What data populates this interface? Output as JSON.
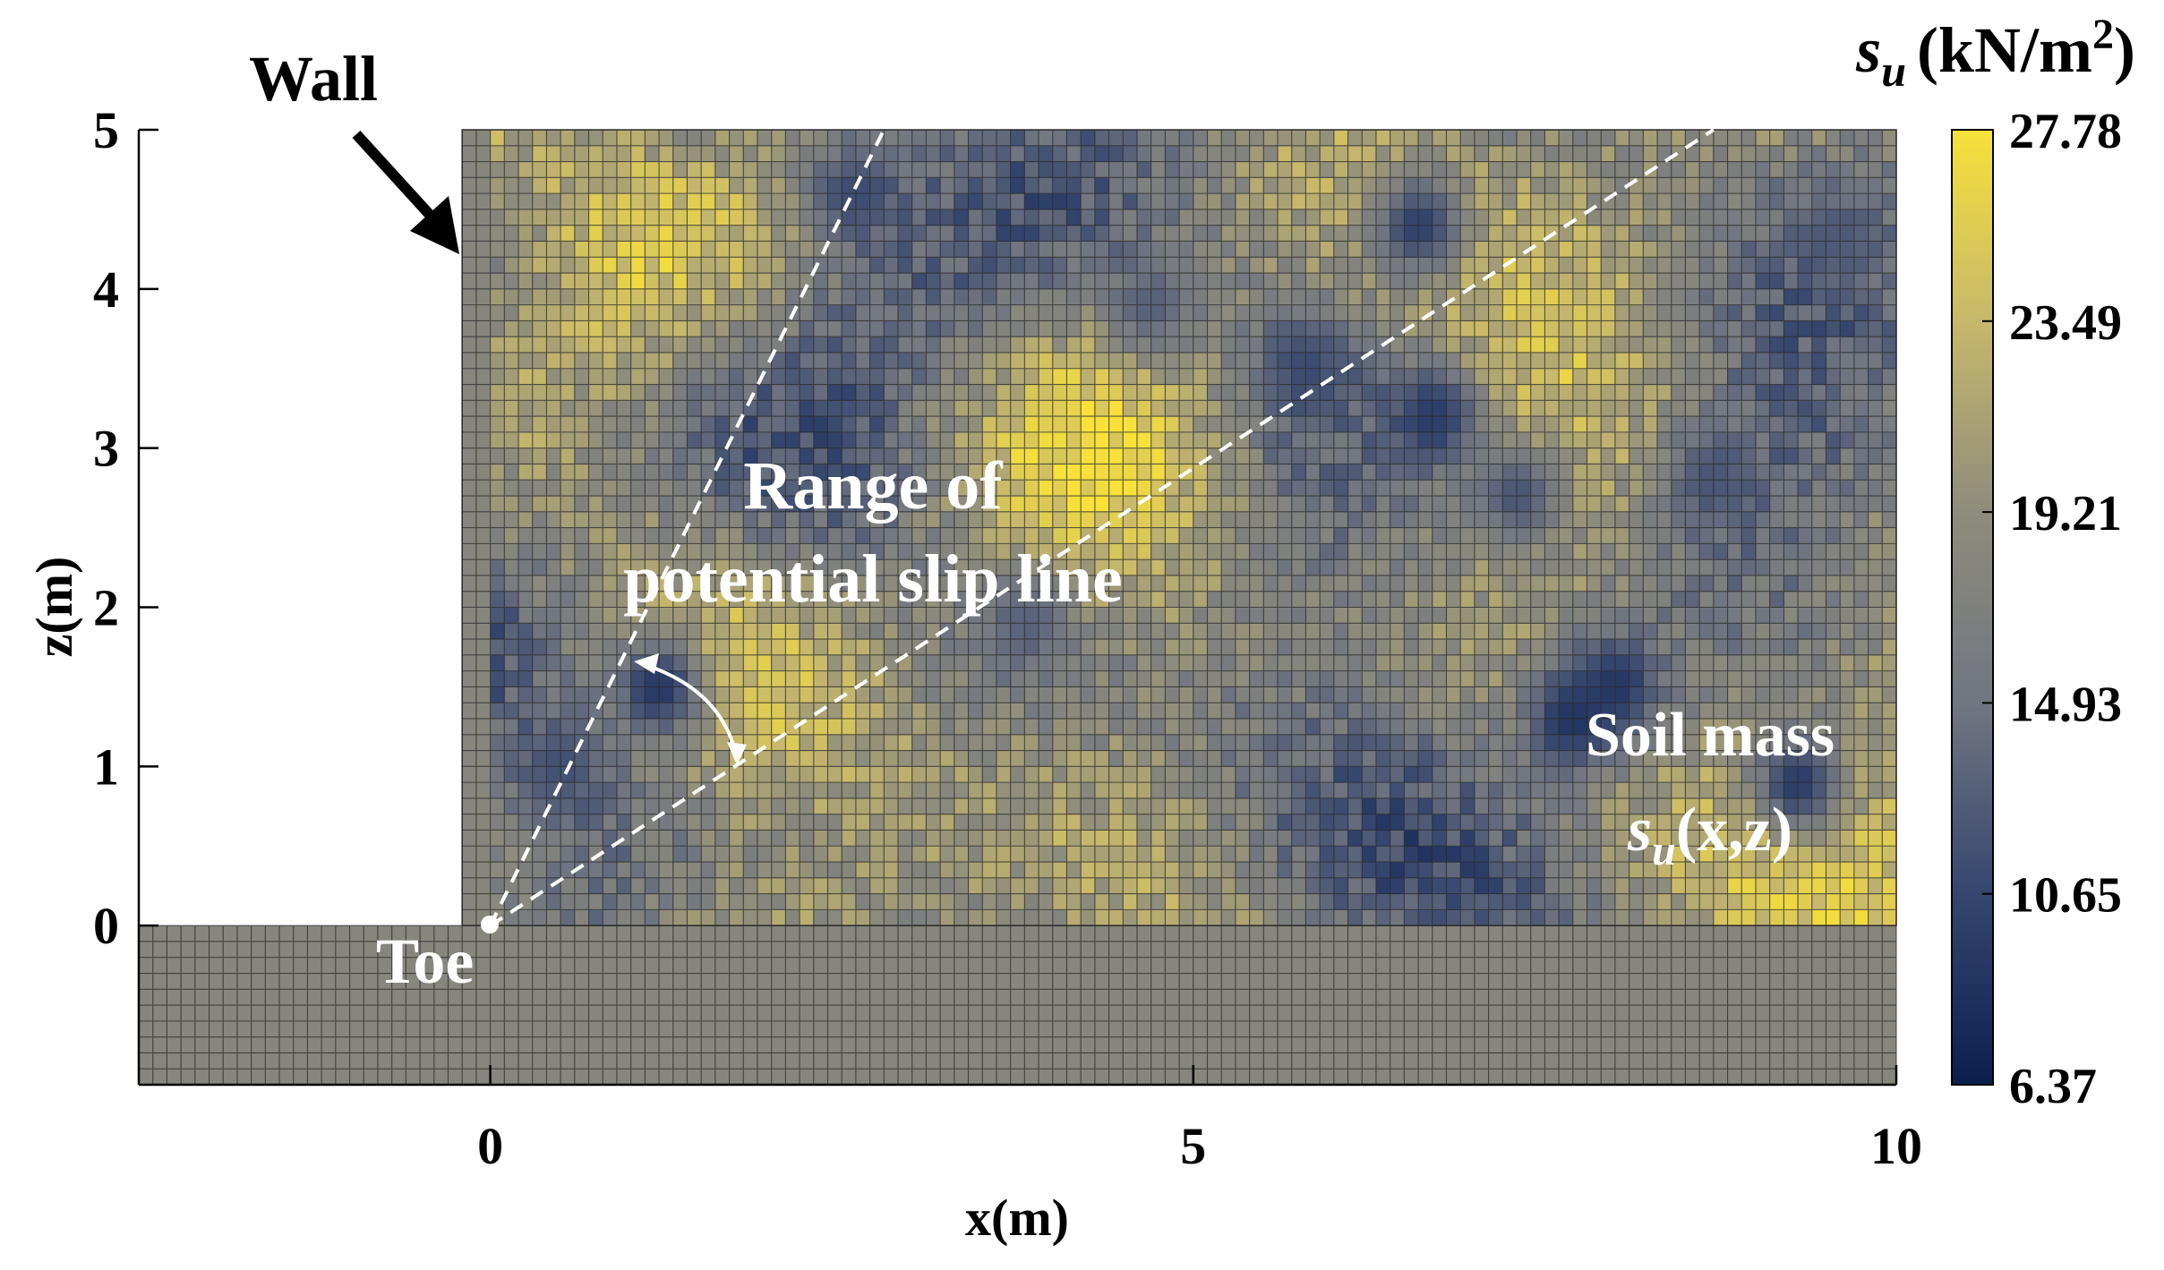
{
  "chart_data": {
    "type": "heatmap",
    "title": "",
    "xlabel": "x(m)",
    "ylabel": "z(m)",
    "xlim": [
      -2.5,
      10
    ],
    "ylim": [
      -1.0,
      5.0
    ],
    "x_ticks": [
      "0",
      "5",
      "10"
    ],
    "x_tick_values": [
      0,
      5,
      10
    ],
    "y_ticks": [
      "0",
      "1",
      "2",
      "3",
      "4",
      "5"
    ],
    "y_tick_values": [
      0,
      1,
      2,
      3,
      4,
      5
    ],
    "grid_cell_size_m": 0.1,
    "soil_domain": {
      "x": [
        0,
        10
      ],
      "z": [
        0,
        5
      ]
    },
    "foundation_domain": {
      "x": [
        -2.5,
        10
      ],
      "z": [
        -1,
        0
      ]
    },
    "colorbar": {
      "label_symbol": "s",
      "label_subscript": "u",
      "label_unit": "(kN/m",
      "label_sup": "2",
      "label_close": ")",
      "min": 6.37,
      "max": 27.78,
      "ticks": [
        "27.78",
        "23.49",
        "19.21",
        "14.93",
        "10.65",
        "6.37"
      ],
      "tick_values": [
        27.78,
        23.49,
        19.21,
        14.93,
        10.65,
        6.37
      ],
      "colors": [
        "#0b1f4f",
        "#35466e",
        "#717681",
        "#8e8c7c",
        "#c7b86c",
        "#f7e13a"
      ]
    },
    "slip_lines": [
      {
        "name": "steep",
        "from": [
          0,
          0
        ],
        "to": [
          2.8,
          5.0
        ]
      },
      {
        "name": "shallow",
        "from": [
          0,
          0
        ],
        "to": [
          8.7,
          5.0
        ]
      }
    ],
    "low_strength_patches": [
      {
        "x": 7.7,
        "z": 1.3,
        "value": 8.5
      },
      {
        "x": 8.0,
        "z": 1.5,
        "value": 9.0
      },
      {
        "x": 6.7,
        "z": 3.2,
        "value": 9.5
      },
      {
        "x": 6.6,
        "z": 4.4,
        "value": 10.0
      },
      {
        "x": 5.8,
        "z": 3.5,
        "value": 11.0
      },
      {
        "x": 9.3,
        "z": 0.9,
        "value": 9.5
      },
      {
        "x": 1.2,
        "z": 1.5,
        "value": 9.0
      },
      {
        "x": 0.5,
        "z": 1.0,
        "value": 11.5
      },
      {
        "x": 2.6,
        "z": 4.6,
        "value": 11.0
      },
      {
        "x": 8.7,
        "z": 2.8,
        "value": 12.0
      },
      {
        "x": 7.3,
        "z": 2.7,
        "value": 12.0
      },
      {
        "x": 3.8,
        "z": 1.9,
        "value": 13.0
      },
      {
        "x": 9.6,
        "z": 4.3,
        "value": 12.5
      },
      {
        "x": 4.7,
        "z": 3.9,
        "value": 13.0
      }
    ],
    "foundation_value": 18.0,
    "annotations": {
      "wall": "Wall",
      "toe": "Toe",
      "range_line1": "Range of",
      "range_line2": "potential slip line",
      "soil_line1": "Soil mass",
      "soil_symbol": "s",
      "soil_subscript": "u",
      "soil_args": "(x,z)"
    }
  }
}
